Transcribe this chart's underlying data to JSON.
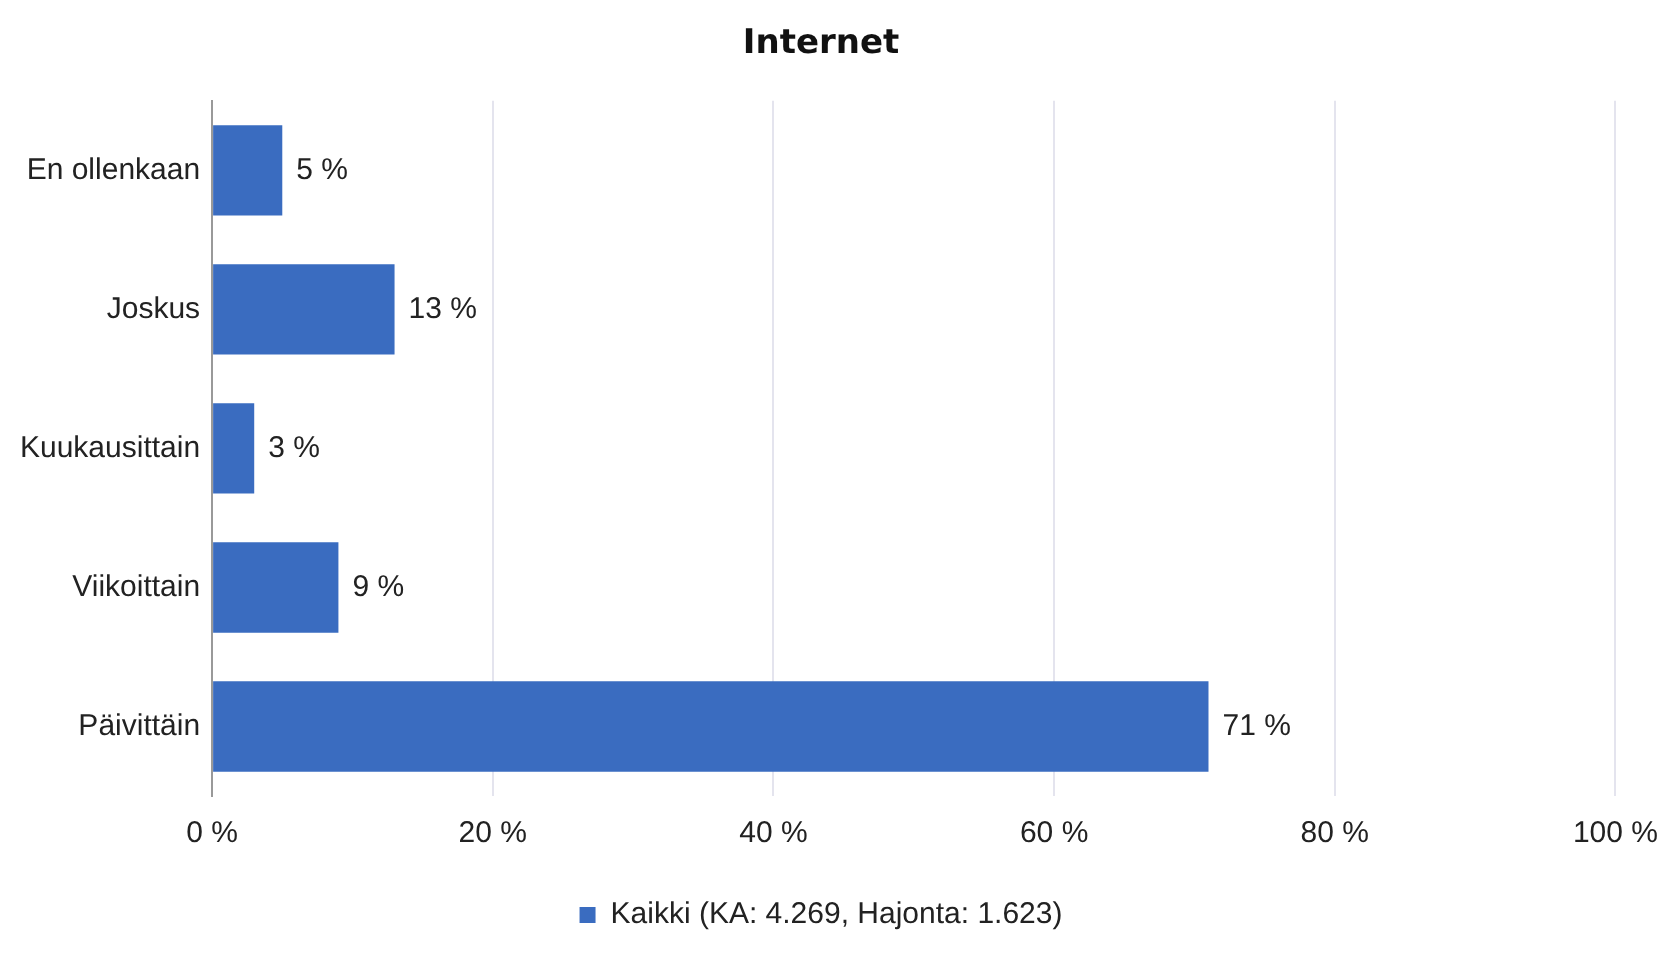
{
  "chart_data": {
    "type": "bar",
    "orientation": "horizontal",
    "title": "Internet",
    "categories": [
      "En ollenkaan",
      "Joskus",
      "Kuukausittain",
      "Viikoittain",
      "Päivittäin"
    ],
    "series": [
      {
        "name": "Kaikki (KA: 4.269, Hajonta: 1.623)",
        "color": "#3a6cc0",
        "values": [
          5,
          13,
          3,
          9,
          71
        ],
        "value_labels": [
          "5 %",
          "13 %",
          "3 %",
          "9 %",
          "71 %"
        ]
      }
    ],
    "xlim": [
      0,
      100
    ],
    "xticks": [
      {
        "value": 0,
        "label": "0 %"
      },
      {
        "value": 20,
        "label": "20 %"
      },
      {
        "value": 40,
        "label": "40 %"
      },
      {
        "value": 60,
        "label": "60 %"
      },
      {
        "value": 80,
        "label": "80 %"
      },
      {
        "value": 100,
        "label": "100 %"
      }
    ],
    "grid": "x",
    "legend": "bottom"
  }
}
